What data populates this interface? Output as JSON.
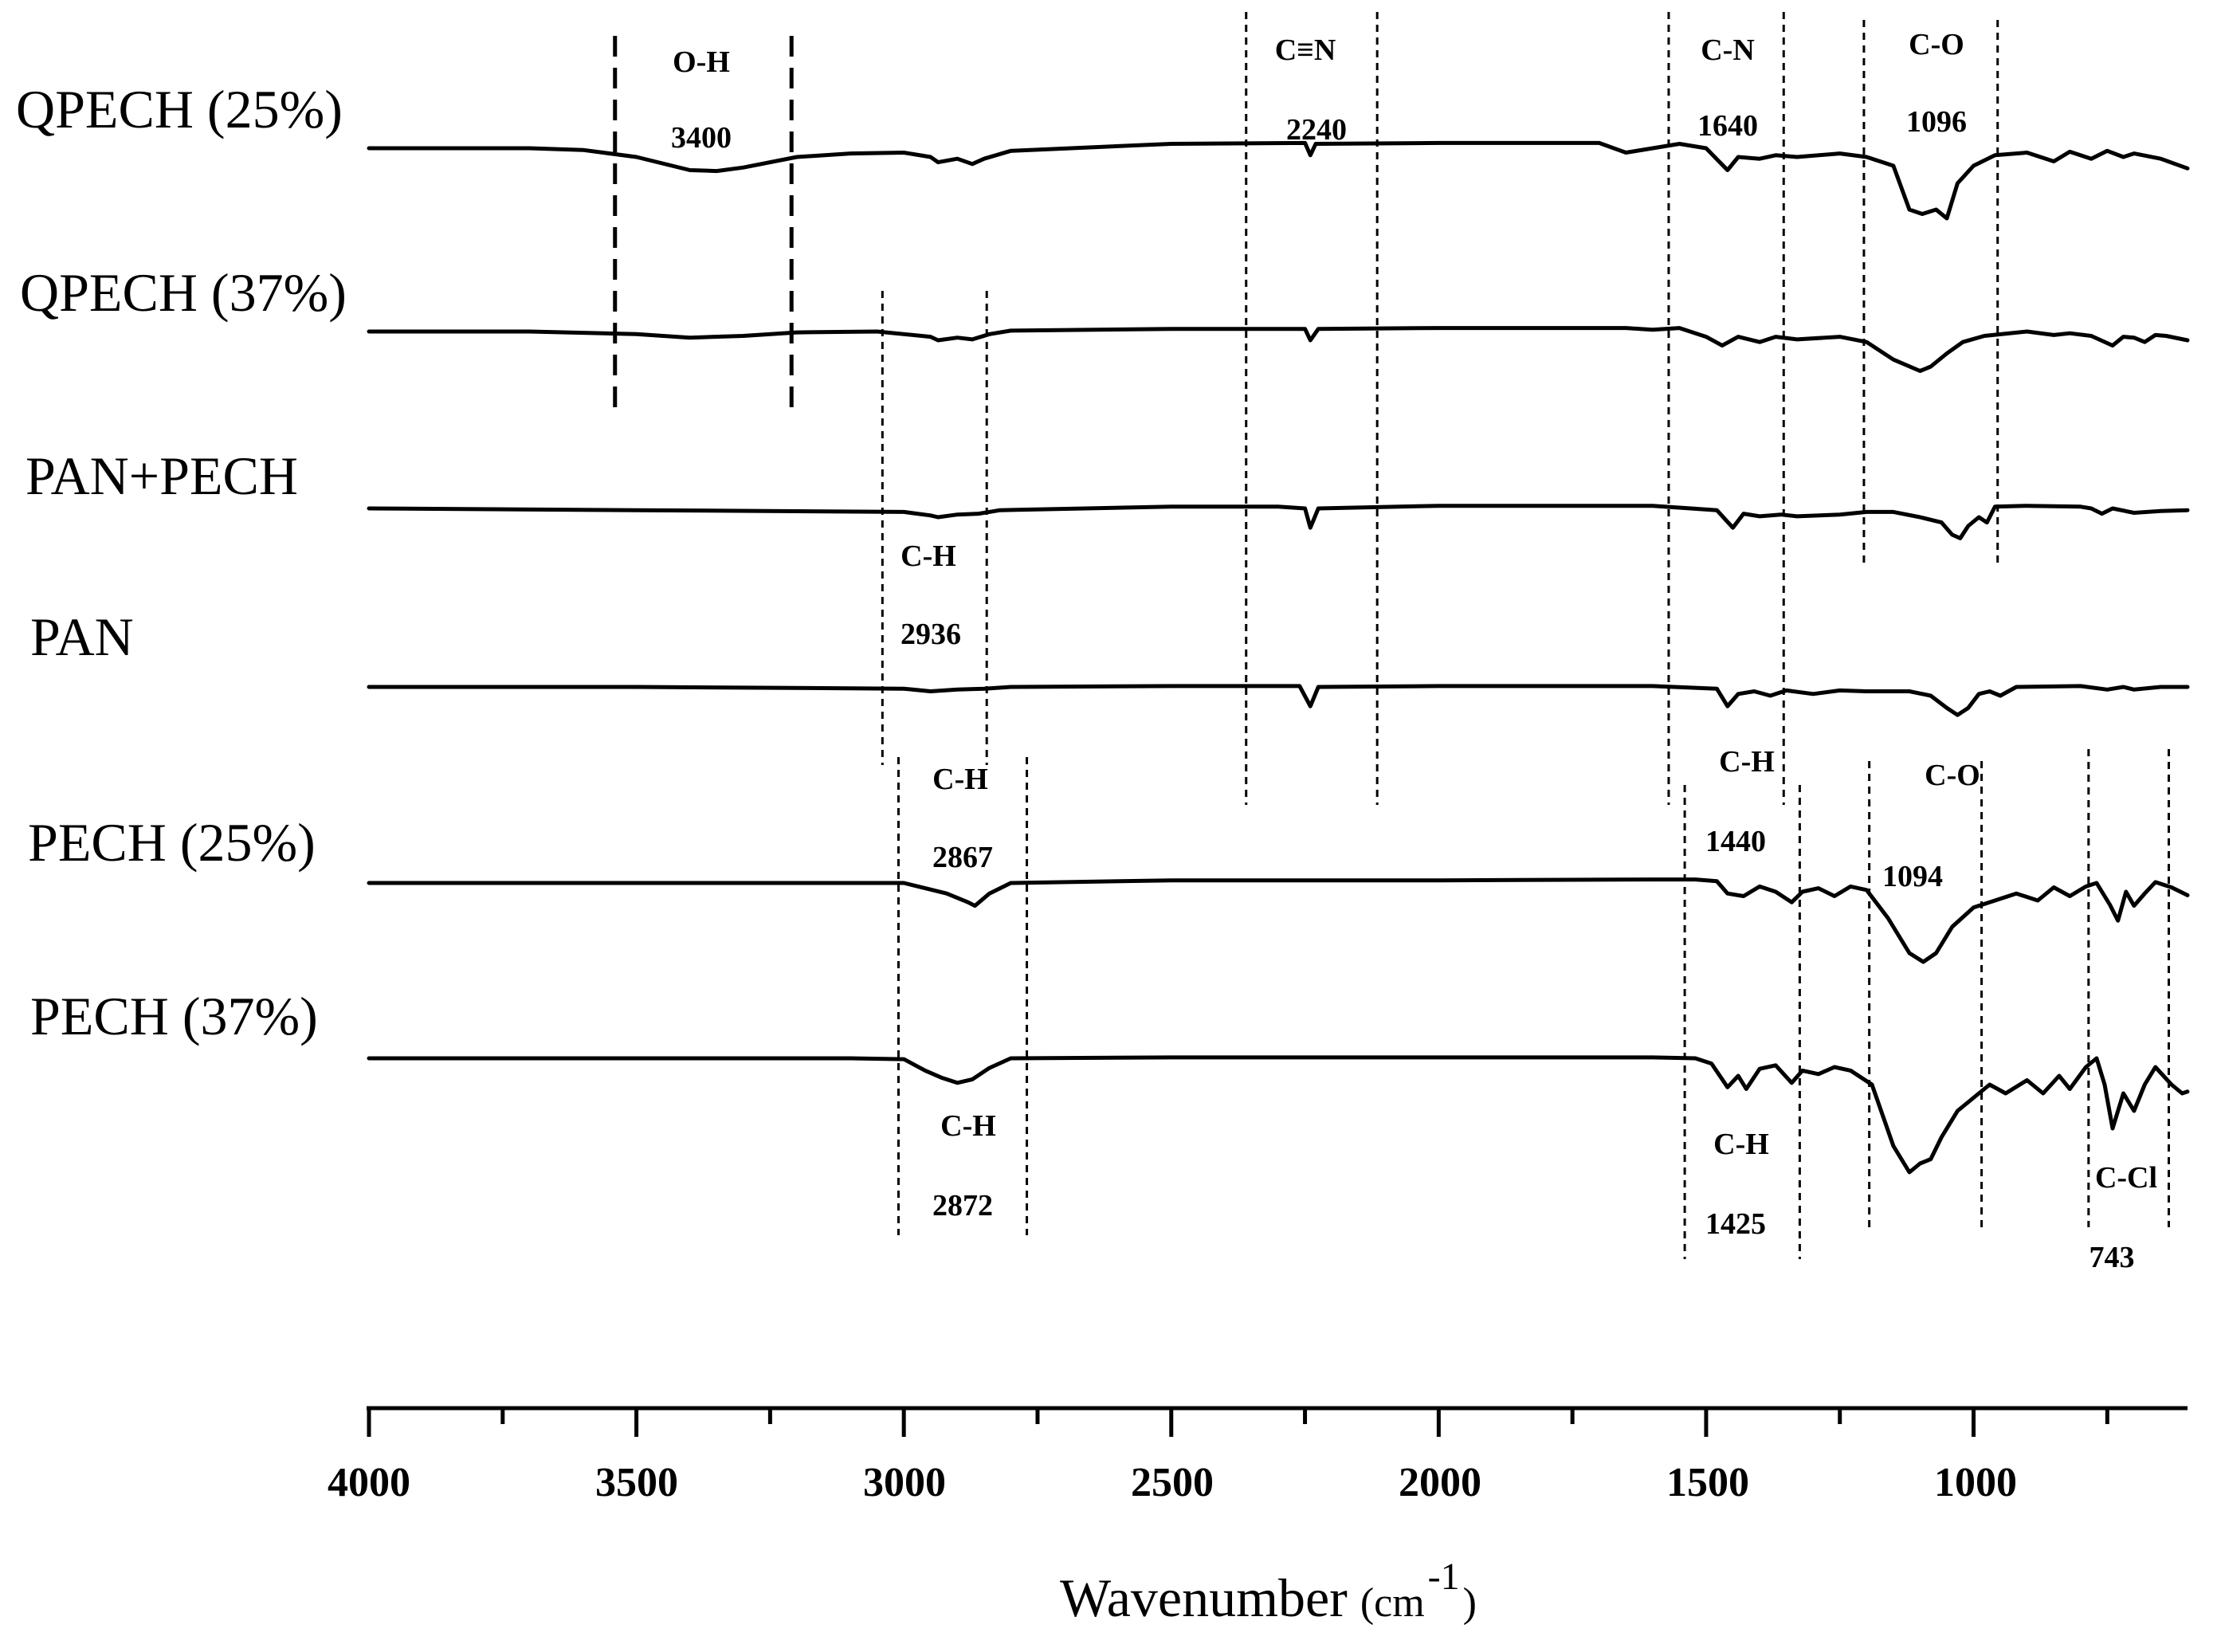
{
  "chart_data": {
    "type": "line",
    "title": "",
    "xlabel": "Wavenumber",
    "xlabel_unit_prefix": "(cm",
    "xlabel_unit_exp": "-1",
    "xlabel_unit_suffix": ")",
    "ylabel": "",
    "xlim": [
      4000,
      600
    ],
    "x_ticks": [
      4000,
      3500,
      3000,
      2500,
      2000,
      1500,
      1000
    ],
    "x_minor_ticks": [
      3750,
      3250,
      2750,
      2250,
      1750,
      1250,
      750
    ],
    "series": [
      {
        "name": "QPECH (25%)",
        "baseline": 0,
        "points": [
          [
            4000,
            0
          ],
          [
            3700,
            0
          ],
          [
            3600,
            -0.2
          ],
          [
            3500,
            -1
          ],
          [
            3400,
            -2.5
          ],
          [
            3350,
            -2.6
          ],
          [
            3300,
            -2.2
          ],
          [
            3200,
            -1
          ],
          [
            3100,
            -0.6
          ],
          [
            3000,
            -0.5
          ],
          [
            2950,
            -1
          ],
          [
            2936,
            -1.6
          ],
          [
            2900,
            -1.2
          ],
          [
            2872,
            -1.8
          ],
          [
            2850,
            -1.2
          ],
          [
            2800,
            -0.3
          ],
          [
            2500,
            0.5
          ],
          [
            2250,
            0.6
          ],
          [
            2240,
            -0.8
          ],
          [
            2230,
            0.5
          ],
          [
            2000,
            0.6
          ],
          [
            1700,
            0.6
          ],
          [
            1650,
            -0.5
          ],
          [
            1550,
            0.5
          ],
          [
            1500,
            0
          ],
          [
            1460,
            -2.5
          ],
          [
            1440,
            -1
          ],
          [
            1400,
            -1.2
          ],
          [
            1370,
            -0.8
          ],
          [
            1330,
            -1
          ],
          [
            1250,
            -0.6
          ],
          [
            1200,
            -1
          ],
          [
            1150,
            -2
          ],
          [
            1120,
            -7
          ],
          [
            1096,
            -7.5
          ],
          [
            1070,
            -7
          ],
          [
            1050,
            -8
          ],
          [
            1030,
            -4
          ],
          [
            1000,
            -2
          ],
          [
            960,
            -0.8
          ],
          [
            900,
            -0.5
          ],
          [
            850,
            -1.5
          ],
          [
            820,
            -0.4
          ],
          [
            780,
            -1.2
          ],
          [
            750,
            -0.3
          ],
          [
            720,
            -1
          ],
          [
            700,
            -0.6
          ],
          [
            650,
            -1.2
          ],
          [
            600,
            -2.3
          ]
        ]
      },
      {
        "name": "QPECH (37%)",
        "baseline": 0,
        "points": [
          [
            4000,
            0
          ],
          [
            3700,
            0
          ],
          [
            3500,
            -0.3
          ],
          [
            3400,
            -0.7
          ],
          [
            3300,
            -0.5
          ],
          [
            3200,
            -0.1
          ],
          [
            3050,
            0
          ],
          [
            2950,
            -0.6
          ],
          [
            2936,
            -1
          ],
          [
            2900,
            -0.7
          ],
          [
            2872,
            -0.9
          ],
          [
            2840,
            -0.3
          ],
          [
            2800,
            0.1
          ],
          [
            2500,
            0.3
          ],
          [
            2250,
            0.3
          ],
          [
            2240,
            -1
          ],
          [
            2225,
            0.3
          ],
          [
            2000,
            0.4
          ],
          [
            1650,
            0.4
          ],
          [
            1600,
            0.2
          ],
          [
            1550,
            0.4
          ],
          [
            1500,
            -0.6
          ],
          [
            1470,
            -1.6
          ],
          [
            1440,
            -0.6
          ],
          [
            1400,
            -1.2
          ],
          [
            1370,
            -0.6
          ],
          [
            1330,
            -0.9
          ],
          [
            1250,
            -0.6
          ],
          [
            1200,
            -1.2
          ],
          [
            1150,
            -3.2
          ],
          [
            1100,
            -4.5
          ],
          [
            1080,
            -4
          ],
          [
            1050,
            -2.5
          ],
          [
            1020,
            -1.2
          ],
          [
            980,
            -0.5
          ],
          [
            900,
            0
          ],
          [
            850,
            -0.4
          ],
          [
            820,
            -0.2
          ],
          [
            780,
            -0.5
          ],
          [
            740,
            -1.6
          ],
          [
            720,
            -0.6
          ],
          [
            700,
            -0.7
          ],
          [
            680,
            -1.2
          ],
          [
            660,
            -0.4
          ],
          [
            640,
            -0.5
          ],
          [
            600,
            -1
          ]
        ]
      },
      {
        "name": "PAN+PECH",
        "baseline": 0,
        "points": [
          [
            4000,
            0
          ],
          [
            3500,
            -0.2
          ],
          [
            3000,
            -0.4
          ],
          [
            2950,
            -0.8
          ],
          [
            2936,
            -1
          ],
          [
            2900,
            -0.7
          ],
          [
            2860,
            -0.6
          ],
          [
            2820,
            -0.2
          ],
          [
            2500,
            0.2
          ],
          [
            2300,
            0.2
          ],
          [
            2250,
            0
          ],
          [
            2240,
            -2.2
          ],
          [
            2225,
            0
          ],
          [
            2000,
            0.3
          ],
          [
            1600,
            0.3
          ],
          [
            1480,
            -0.2
          ],
          [
            1450,
            -2.2
          ],
          [
            1430,
            -0.6
          ],
          [
            1400,
            -0.9
          ],
          [
            1360,
            -0.7
          ],
          [
            1330,
            -0.9
          ],
          [
            1250,
            -0.7
          ],
          [
            1200,
            -0.4
          ],
          [
            1150,
            -0.4
          ],
          [
            1100,
            -1
          ],
          [
            1060,
            -1.6
          ],
          [
            1040,
            -3
          ],
          [
            1025,
            -3.4
          ],
          [
            1010,
            -2
          ],
          [
            990,
            -1
          ],
          [
            975,
            -1.6
          ],
          [
            960,
            0.2
          ],
          [
            900,
            0.3
          ],
          [
            800,
            0.2
          ],
          [
            780,
            0
          ],
          [
            760,
            -0.6
          ],
          [
            740,
            0
          ],
          [
            700,
            -0.5
          ],
          [
            650,
            -0.3
          ],
          [
            600,
            -0.2
          ]
        ]
      },
      {
        "name": "PAN",
        "baseline": 0,
        "points": [
          [
            4000,
            0
          ],
          [
            3500,
            0
          ],
          [
            3000,
            -0.2
          ],
          [
            2950,
            -0.5
          ],
          [
            2900,
            -0.3
          ],
          [
            2850,
            -0.2
          ],
          [
            2800,
            0
          ],
          [
            2500,
            0.1
          ],
          [
            2260,
            0.1
          ],
          [
            2240,
            -2.2
          ],
          [
            2225,
            0
          ],
          [
            2000,
            0.1
          ],
          [
            1600,
            0.1
          ],
          [
            1480,
            -0.2
          ],
          [
            1460,
            -2.2
          ],
          [
            1440,
            -0.8
          ],
          [
            1410,
            -0.5
          ],
          [
            1380,
            -1
          ],
          [
            1350,
            -0.4
          ],
          [
            1300,
            -0.8
          ],
          [
            1250,
            -0.4
          ],
          [
            1200,
            -0.5
          ],
          [
            1120,
            -0.5
          ],
          [
            1080,
            -1
          ],
          [
            1050,
            -2.4
          ],
          [
            1030,
            -3.2
          ],
          [
            1010,
            -2.4
          ],
          [
            990,
            -0.8
          ],
          [
            970,
            -0.5
          ],
          [
            950,
            -1
          ],
          [
            920,
            0
          ],
          [
            800,
            0.1
          ],
          [
            750,
            -0.3
          ],
          [
            720,
            0
          ],
          [
            700,
            -0.3
          ],
          [
            650,
            0
          ],
          [
            600,
            0
          ]
        ]
      },
      {
        "name": "PECH (25%)",
        "baseline": 0,
        "points": [
          [
            4000,
            0
          ],
          [
            3500,
            0
          ],
          [
            3100,
            0
          ],
          [
            3000,
            0
          ],
          [
            2960,
            -0.6
          ],
          [
            2920,
            -1.2
          ],
          [
            2880,
            -2.2
          ],
          [
            2867,
            -2.6
          ],
          [
            2840,
            -1.2
          ],
          [
            2800,
            0
          ],
          [
            2500,
            0.3
          ],
          [
            2000,
            0.3
          ],
          [
            1600,
            0.4
          ],
          [
            1520,
            0.4
          ],
          [
            1480,
            0.2
          ],
          [
            1460,
            -1.2
          ],
          [
            1430,
            -1.5
          ],
          [
            1400,
            -0.4
          ],
          [
            1370,
            -1
          ],
          [
            1340,
            -2.2
          ],
          [
            1320,
            -1
          ],
          [
            1290,
            -0.6
          ],
          [
            1260,
            -1.5
          ],
          [
            1230,
            -0.4
          ],
          [
            1200,
            -0.8
          ],
          [
            1160,
            -4
          ],
          [
            1120,
            -8
          ],
          [
            1094,
            -9
          ],
          [
            1070,
            -8
          ],
          [
            1040,
            -5
          ],
          [
            1000,
            -2.8
          ],
          [
            960,
            -2
          ],
          [
            920,
            -1.2
          ],
          [
            880,
            -2
          ],
          [
            850,
            -0.5
          ],
          [
            820,
            -1.5
          ],
          [
            790,
            -0.4
          ],
          [
            770,
            0
          ],
          [
            745,
            -2.5
          ],
          [
            730,
            -4.3
          ],
          [
            715,
            -1
          ],
          [
            700,
            -2.6
          ],
          [
            680,
            -1.2
          ],
          [
            660,
            0.1
          ],
          [
            630,
            -0.5
          ],
          [
            600,
            -1.4
          ]
        ]
      },
      {
        "name": "PECH (37%)",
        "baseline": 0,
        "points": [
          [
            4000,
            0
          ],
          [
            3500,
            0
          ],
          [
            3100,
            0
          ],
          [
            3000,
            -0.1
          ],
          [
            2960,
            -1.4
          ],
          [
            2930,
            -2.2
          ],
          [
            2900,
            -2.8
          ],
          [
            2872,
            -2.4
          ],
          [
            2840,
            -1.1
          ],
          [
            2800,
            0
          ],
          [
            2500,
            0.1
          ],
          [
            2000,
            0.1
          ],
          [
            1600,
            0.1
          ],
          [
            1520,
            0
          ],
          [
            1490,
            -0.6
          ],
          [
            1460,
            -3.3
          ],
          [
            1440,
            -2
          ],
          [
            1425,
            -3.5
          ],
          [
            1400,
            -1.2
          ],
          [
            1370,
            -0.8
          ],
          [
            1340,
            -2.8
          ],
          [
            1320,
            -1.4
          ],
          [
            1290,
            -1.8
          ],
          [
            1260,
            -1
          ],
          [
            1230,
            -1.4
          ],
          [
            1190,
            -3
          ],
          [
            1150,
            -10
          ],
          [
            1120,
            -13
          ],
          [
            1100,
            -12
          ],
          [
            1080,
            -11.5
          ],
          [
            1060,
            -9
          ],
          [
            1030,
            -6
          ],
          [
            1000,
            -4.5
          ],
          [
            970,
            -3
          ],
          [
            940,
            -4
          ],
          [
            900,
            -2.5
          ],
          [
            870,
            -4
          ],
          [
            840,
            -2
          ],
          [
            820,
            -3.5
          ],
          [
            790,
            -1
          ],
          [
            770,
            0
          ],
          [
            755,
            -3
          ],
          [
            740,
            -8
          ],
          [
            720,
            -4
          ],
          [
            700,
            -6
          ],
          [
            680,
            -3
          ],
          [
            660,
            -1
          ],
          [
            630,
            -3
          ],
          [
            610,
            -4
          ],
          [
            600,
            -3.8
          ]
        ]
      }
    ],
    "annotations": [
      {
        "label": "O-H",
        "value": "3400",
        "lines": [
          3540,
          3210
        ],
        "style": "thick"
      },
      {
        "label": "C≡N",
        "value": "2240",
        "lines": [
          2360,
          2115
        ],
        "style": "thin"
      },
      {
        "label": "C-N",
        "value": "1640",
        "lines": [
          1570,
          1355
        ],
        "style": "thin"
      },
      {
        "label": "C-O",
        "value": "1096",
        "lines": [
          1205,
          955
        ],
        "style": "thin"
      },
      {
        "label": "C-H",
        "value": "2936",
        "lines": [
          3040,
          2845
        ],
        "style": "thin"
      },
      {
        "label": "C-H",
        "value": "2867",
        "lines": [
          3010,
          2770
        ],
        "style": "thin"
      },
      {
        "label": "C-H",
        "value": "1440",
        "lines": [
          1540,
          1325
        ],
        "style": "thin"
      },
      {
        "label": "C-O",
        "value": "1094",
        "lines": [
          1195,
          985
        ],
        "style": "thin"
      },
      {
        "label": "C-H",
        "value": "2872",
        "lines": [
          3010,
          2770
        ],
        "style": "thin"
      },
      {
        "label": "C-H",
        "value": "1425",
        "lines": [
          1540,
          1325
        ],
        "style": "thin"
      },
      {
        "label": "C-Cl",
        "value": "743",
        "lines": [
          785,
          635
        ],
        "style": "thin"
      }
    ]
  }
}
